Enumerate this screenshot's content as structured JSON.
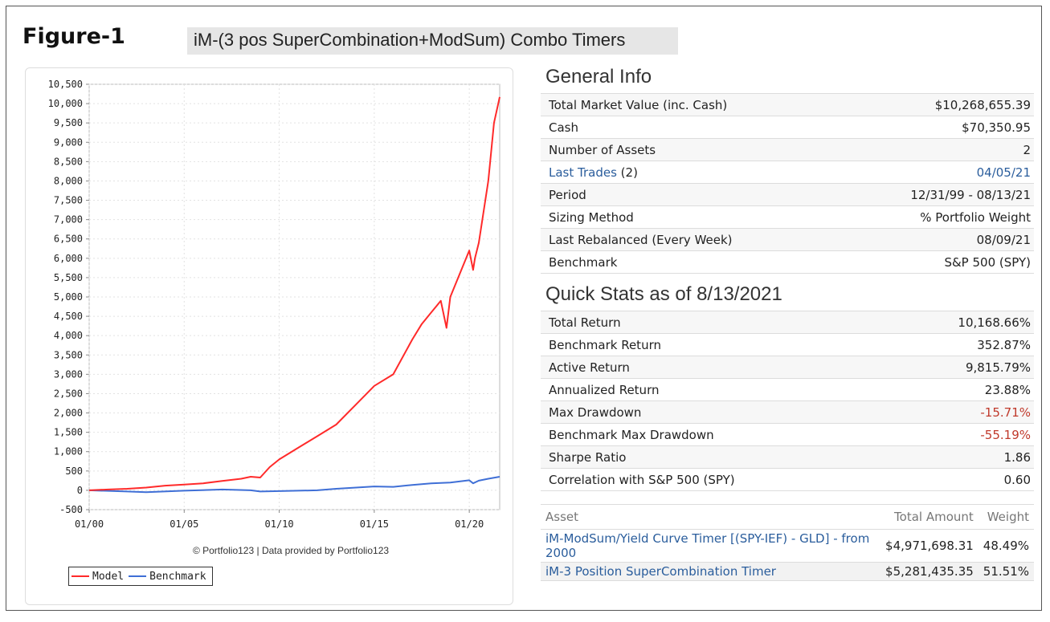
{
  "figure_label": "Figure-1",
  "figure_title": "iM-(3 pos SuperCombination+ModSum) Combo Timers",
  "general_info": {
    "title": "General Info",
    "rows": [
      {
        "label": "Total Market Value (inc. Cash)",
        "value": "$10,268,655.39"
      },
      {
        "label": "Cash",
        "value": "$70,350.95"
      },
      {
        "label": "Number of Assets",
        "value": "2"
      },
      {
        "label": "Last Trades",
        "label_suffix": " (2)",
        "value": "04/05/21"
      },
      {
        "label": "Period",
        "value": "12/31/99 - 08/13/21"
      },
      {
        "label": "Sizing Method",
        "value": "% Portfolio Weight"
      },
      {
        "label": "Last Rebalanced (Every Week)",
        "value": "08/09/21"
      },
      {
        "label": "Benchmark",
        "value": "S&P 500 (SPY)"
      }
    ]
  },
  "quick_stats": {
    "title": "Quick Stats as of 8/13/2021",
    "rows": [
      {
        "label": "Total Return",
        "value": "10,168.66%"
      },
      {
        "label": "Benchmark Return",
        "value": "352.87%"
      },
      {
        "label": "Active Return",
        "value": "9,815.79%"
      },
      {
        "label": "Annualized Return",
        "value": "23.88%"
      },
      {
        "label": "Max Drawdown",
        "value": "-15.71%"
      },
      {
        "label": "Benchmark Max Drawdown",
        "value": "-55.19%"
      },
      {
        "label": "Sharpe Ratio",
        "value": "1.86"
      },
      {
        "label": "Correlation with S&P 500 (SPY)",
        "value": "0.60"
      }
    ]
  },
  "assets": {
    "headers": [
      "Asset",
      "Total Amount",
      "Weight"
    ],
    "rows": [
      {
        "name": "iM-ModSum/Yield Curve Timer [(SPY-IEF) - GLD] - from 2000",
        "amount": "$4,971,698.31",
        "weight": "48.49%"
      },
      {
        "name": "iM-3 Position SuperCombination Timer",
        "amount": "$5,281,435.35",
        "weight": "51.51%"
      }
    ]
  },
  "chart_credit": "© Portfolio123 | Data provided by Portfolio123",
  "colors": {
    "model": "#ff2a2a",
    "benchmark": "#3f6fd6",
    "link": "#2a5d9c",
    "negative": "#c0392b"
  },
  "chart_data": {
    "type": "line",
    "title": "",
    "xlabel": "",
    "ylabel": "",
    "x_ticks": [
      "01/00",
      "01/05",
      "01/10",
      "01/15",
      "01/20"
    ],
    "x_tick_years": [
      2000,
      2005,
      2010,
      2015,
      2020
    ],
    "y_ticks": [
      "10,500",
      "10,000",
      "9,500",
      "9,000",
      "8,500",
      "8,000",
      "7,500",
      "7,000",
      "6,500",
      "6,000",
      "5,500",
      "5,000",
      "4,500",
      "4,000",
      "3,500",
      "3,000",
      "2,500",
      "2,000",
      "1,500",
      "1,000",
      "500",
      "0",
      "-500"
    ],
    "ylim": [
      -500,
      10500
    ],
    "xlim": [
      2000.0,
      2021.6
    ],
    "grid": true,
    "legend": "bottom-left",
    "series": [
      {
        "name": "Model",
        "x": [
          2000.0,
          2001.0,
          2002.0,
          2003.0,
          2004.0,
          2005.0,
          2006.0,
          2007.0,
          2008.0,
          2008.5,
          2009.0,
          2009.5,
          2010.0,
          2011.0,
          2012.0,
          2013.0,
          2014.0,
          2015.0,
          2016.0,
          2017.0,
          2017.5,
          2018.0,
          2018.5,
          2018.8,
          2019.0,
          2019.5,
          2020.0,
          2020.2,
          2020.3,
          2020.5,
          2021.0,
          2021.3,
          2021.6
        ],
        "y": [
          0,
          20,
          40,
          70,
          120,
          150,
          180,
          240,
          300,
          350,
          330,
          600,
          800,
          1100,
          1400,
          1700,
          2200,
          2700,
          3000,
          3900,
          4300,
          4600,
          4900,
          4200,
          5000,
          5600,
          6200,
          5700,
          6000,
          6400,
          8000,
          9500,
          10170
        ]
      },
      {
        "name": "Benchmark",
        "x": [
          2000.0,
          2002.0,
          2003.0,
          2005.0,
          2007.0,
          2008.5,
          2009.0,
          2010.0,
          2012.0,
          2013.0,
          2015.0,
          2016.0,
          2017.0,
          2018.0,
          2019.0,
          2020.0,
          2020.2,
          2020.5,
          2021.0,
          2021.6
        ],
        "y": [
          0,
          -30,
          -50,
          -10,
          20,
          0,
          -30,
          -20,
          0,
          40,
          100,
          90,
          140,
          180,
          200,
          260,
          180,
          250,
          300,
          350
        ]
      }
    ]
  }
}
